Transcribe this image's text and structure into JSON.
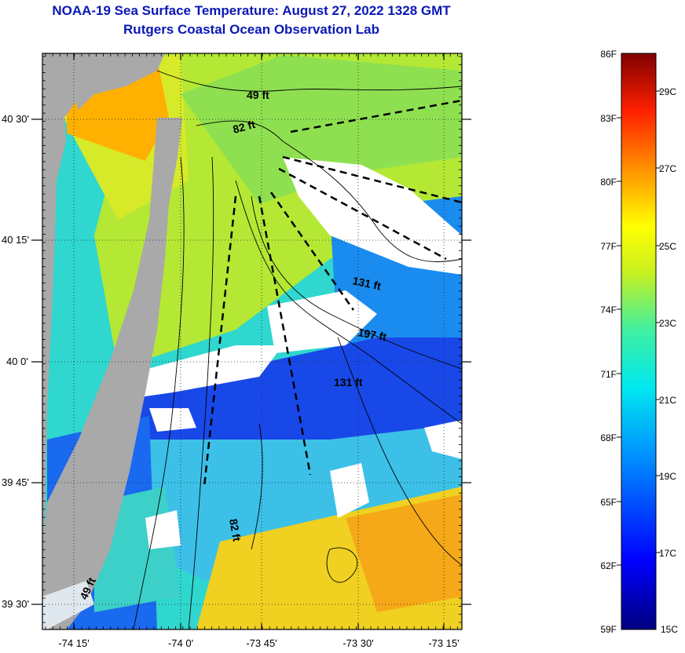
{
  "header": {
    "title": "NOAA-19 Sea Surface Temperature:  August 27, 2022 1328 GMT",
    "subtitle": "Rutgers Coastal Ocean Observation Lab"
  },
  "map": {
    "lon_ticks": [
      "-74 15'",
      "-74 0'",
      "-73 45'",
      "-73 30'",
      "-73 15'"
    ],
    "lat_ticks": [
      "40 30'",
      "40 15'",
      "40 0'",
      "39 45'",
      "39 30'"
    ],
    "depth_labels": [
      "49 ft",
      "82 ft",
      "131 ft",
      "197 ft",
      "131 ft",
      "82 ft",
      "49 ft"
    ],
    "colors": {
      "land": "#a9a9a9",
      "cloud": "#ffffff",
      "contour": "#000000"
    }
  },
  "colorbar": {
    "fahrenheit_labels": [
      "86F",
      "83F",
      "80F",
      "77F",
      "74F",
      "71F",
      "68F",
      "65F",
      "62F",
      "59F"
    ],
    "celsius_labels": [
      "29C",
      "27C",
      "25C",
      "23C",
      "21C",
      "19C",
      "17C",
      "15C"
    ],
    "range_f": [
      59,
      86
    ]
  }
}
